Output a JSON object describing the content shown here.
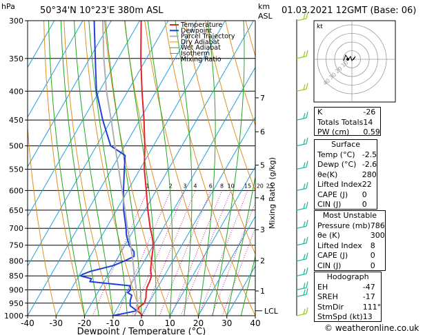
{
  "header": {
    "location": "50°34'N  10°23'E  380m  ASL",
    "valid": "01.03.2021  12GMT  (Base: 06)"
  },
  "chart_data": {
    "type": "line",
    "title": "50°34'N  10°23'E  380m  ASL",
    "xlabel": "Dewpoint / Temperature (°C)",
    "ylabel": "hPa",
    "xlim": [
      -40,
      40
    ],
    "ylim": [
      1000,
      300
    ],
    "x_ticks": [
      "-40",
      "-30",
      "-20",
      "-10",
      "0",
      "10",
      "20",
      "30",
      "40"
    ],
    "p_ticks": [
      "300",
      "350",
      "400",
      "450",
      "500",
      "550",
      "600",
      "650",
      "700",
      "750",
      "800",
      "850",
      "900",
      "950",
      "1000"
    ],
    "km_label": "km",
    "asl_label": "ASL",
    "km_ticks": [
      {
        "label": "1",
        "p": 904
      },
      {
        "label": "2",
        "p": 799
      },
      {
        "label": "3",
        "p": 704
      },
      {
        "label": "4",
        "p": 618
      },
      {
        "label": "5",
        "p": 541
      },
      {
        "label": "6",
        "p": 472
      },
      {
        "label": "7",
        "p": 411
      }
    ],
    "lcl_label": "LCL",
    "lcl_p": 980,
    "mixing_ratio_axis_label": "Mixing Ratio (g/kg)",
    "mixing_ratio_labels": [
      "1",
      "2",
      "3",
      "4",
      "6",
      "8",
      "10",
      "15",
      "20",
      "25"
    ],
    "mixing_ratios": [
      1,
      2,
      3,
      4,
      6,
      8,
      10,
      15,
      20,
      25
    ],
    "legend": [
      "Temperature",
      "Dewpoint",
      "Parcel Trajectory",
      "Dry Adiabat",
      "Wet Adiabat",
      "Isotherm",
      "Mixing Ratio"
    ],
    "series": [
      {
        "name": "Temperature",
        "color": "#e8202a",
        "points": [
          [
            1000,
            0.5
          ],
          [
            980,
            -2.5
          ],
          [
            965,
            -2.5
          ],
          [
            950,
            -1.5
          ],
          [
            930,
            -2
          ],
          [
            910,
            -3
          ],
          [
            890,
            -3.8
          ],
          [
            870,
            -4
          ],
          [
            850,
            -4.5
          ],
          [
            830,
            -6
          ],
          [
            810,
            -7
          ],
          [
            790,
            -8
          ],
          [
            760,
            -9.5
          ],
          [
            740,
            -10.8
          ],
          [
            720,
            -12.5
          ],
          [
            700,
            -14.5
          ],
          [
            650,
            -19
          ],
          [
            600,
            -23.5
          ],
          [
            550,
            -28.5
          ],
          [
            500,
            -33
          ],
          [
            450,
            -38.5
          ],
          [
            400,
            -45
          ],
          [
            350,
            -52
          ],
          [
            300,
            -59.5
          ]
        ]
      },
      {
        "name": "Dewpoint",
        "color": "#1f3fd8",
        "points": [
          [
            1000,
            -10
          ],
          [
            980,
            -2.6
          ],
          [
            960,
            -6
          ],
          [
            940,
            -7
          ],
          [
            920,
            -7.5
          ],
          [
            910,
            -9.5
          ],
          [
            900,
            -9
          ],
          [
            885,
            -10
          ],
          [
            870,
            -25
          ],
          [
            860,
            -25
          ],
          [
            850,
            -29.5
          ],
          [
            845,
            -29
          ],
          [
            835,
            -27
          ],
          [
            815,
            -20
          ],
          [
            800,
            -17
          ],
          [
            785,
            -14.5
          ],
          [
            770,
            -15.5
          ],
          [
            750,
            -18.5
          ],
          [
            720,
            -21.5
          ],
          [
            700,
            -23
          ],
          [
            650,
            -27.5
          ],
          [
            600,
            -31.5
          ],
          [
            550,
            -35.5
          ],
          [
            520,
            -38
          ],
          [
            500,
            -45
          ],
          [
            450,
            -53
          ],
          [
            400,
            -61
          ],
          [
            350,
            -68
          ],
          [
            300,
            -76
          ]
        ]
      },
      {
        "name": "Parcel Trajectory",
        "color": "#b0b0b0",
        "points": [
          [
            1000,
            -2.5
          ],
          [
            980,
            -2.5
          ],
          [
            950,
            -4
          ],
          [
            900,
            -7
          ],
          [
            850,
            -10.5
          ],
          [
            800,
            -14
          ],
          [
            750,
            -18
          ],
          [
            700,
            -22.5
          ],
          [
            650,
            -27
          ],
          [
            600,
            -32
          ],
          [
            550,
            -37.5
          ],
          [
            500,
            -43.5
          ],
          [
            450,
            -50
          ],
          [
            400,
            -57.5
          ],
          [
            350,
            -65
          ],
          [
            300,
            -73
          ]
        ]
      }
    ]
  },
  "hodograph": {
    "label": "kt",
    "ring_labels": [
      "40",
      "30",
      "20",
      "10"
    ]
  },
  "indices": {
    "rows": [
      {
        "label": "K",
        "value": "-26"
      },
      {
        "label": "Totals Totals",
        "value": "14"
      },
      {
        "label": "PW (cm)",
        "value": "0.59"
      }
    ]
  },
  "surface": {
    "title": "Surface",
    "rows": [
      {
        "label": "Temp (°C)",
        "value": "-2.5"
      },
      {
        "label": "Dewp (°C)",
        "value": "-2.6"
      },
      {
        "label": "θe(K)",
        "value": "280"
      },
      {
        "label": "Lifted Index",
        "value": "22"
      },
      {
        "label": "CAPE (J)",
        "value": "0"
      },
      {
        "label": "CIN (J)",
        "value": "0"
      }
    ]
  },
  "most_unstable": {
    "title": "Most Unstable",
    "rows": [
      {
        "label": "Pressure (mb)",
        "value": "786"
      },
      {
        "label": "θe (K)",
        "value": "300"
      },
      {
        "label": "Lifted Index",
        "value": "8"
      },
      {
        "label": "CAPE (J)",
        "value": "0"
      },
      {
        "label": "CIN (J)",
        "value": "0"
      }
    ]
  },
  "hodograph_table": {
    "title": "Hodograph",
    "rows": [
      {
        "label": "EH",
        "value": "-47"
      },
      {
        "label": "SREH",
        "value": "-17"
      },
      {
        "label": "StmDir",
        "value": "111°"
      },
      {
        "label": "StmSpd (kt)",
        "value": "13"
      }
    ]
  },
  "footer": {
    "credit": "© weatheronline.co.uk"
  },
  "colors": {
    "isotherm": "#1ea0e0",
    "dry_adiabat": "#e0901c",
    "wet_adiabat": "#1fa81f",
    "mixing_ratio": "#d01e9c",
    "wind_barbs": "#20b8a0",
    "wind_barbs_upper": "#9acd1e"
  }
}
